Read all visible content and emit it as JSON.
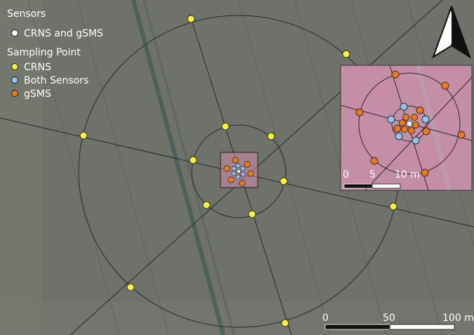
{
  "legend": {
    "sensors_title": "Sensors",
    "sensor_item": "CRNS and gSMS",
    "sampling_title": "Sampling Point",
    "items": [
      {
        "label": "CRNS",
        "color": "#f7f23a"
      },
      {
        "label": "Both Sensors",
        "color": "#8fc6ea"
      },
      {
        "label": "gSMS",
        "color": "#ec7a1c"
      }
    ],
    "sensor_color": "#ffffff"
  },
  "main_scale": {
    "labels": [
      "0",
      "50",
      "100 m"
    ]
  },
  "inset_scale": {
    "labels": [
      "0",
      "5",
      "10 m"
    ]
  },
  "north_arrow": {
    "icon": "north-arrow-icon"
  },
  "colors": {
    "field": "#6b6f68",
    "inset_fill": "#c98ea8",
    "crns": "#f7f23a",
    "both": "#8fc6ea",
    "gsms": "#ec7a1c"
  }
}
